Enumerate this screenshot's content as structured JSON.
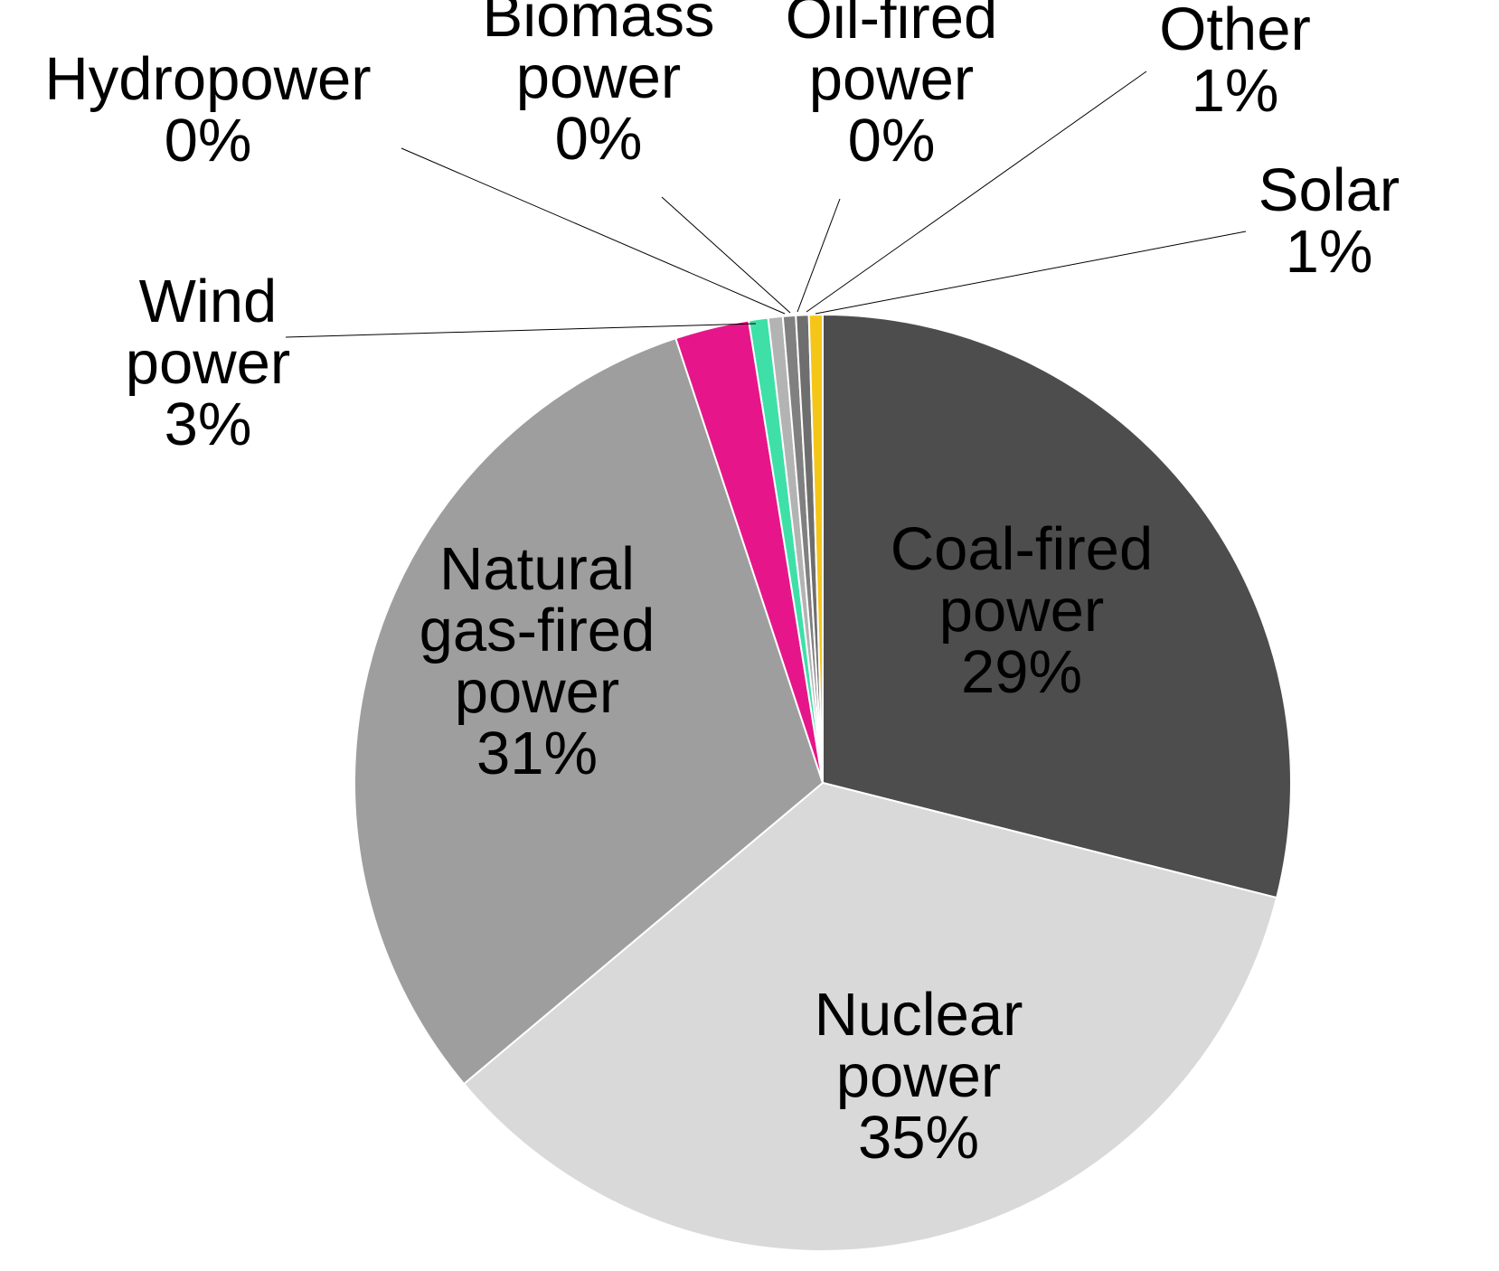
{
  "chart_data": {
    "type": "pie",
    "title": "",
    "slices": [
      {
        "name": "Coal-fired power",
        "value": 29,
        "label": [
          "Coal-fired",
          "power",
          "29%"
        ],
        "color": "#4d4d4d"
      },
      {
        "name": "Nuclear power",
        "value": 35,
        "label": [
          "Nuclear",
          "power",
          "35%"
        ],
        "color": "#d9d9d9"
      },
      {
        "name": "Natural gas-fired power",
        "value": 31,
        "label": [
          "Natural",
          "gas-fired",
          "power",
          "31%"
        ],
        "color": "#9e9e9e"
      },
      {
        "name": "Wind power",
        "value": 3,
        "label": [
          "Wind",
          "power",
          "3%"
        ],
        "color": "#e6168a"
      },
      {
        "name": "Hydropower",
        "value": 0,
        "label": [
          "Hydropower",
          "0%"
        ],
        "color": "#3ee0a8"
      },
      {
        "name": "Biomass power",
        "value": 0,
        "label": [
          "Biomass",
          "power",
          "0%"
        ],
        "color": "#b3b3b3"
      },
      {
        "name": "Oil-fired power",
        "value": 0,
        "label": [
          "Oil-fired",
          "power",
          "0%"
        ],
        "color": "#808080"
      },
      {
        "name": "Other",
        "value": 1,
        "label": [
          "Other",
          "1%"
        ],
        "color": "#6e6e6e"
      },
      {
        "name": "Solar",
        "value": 1,
        "label": [
          "Solar",
          "1%"
        ],
        "color": "#f5c518"
      }
    ]
  }
}
